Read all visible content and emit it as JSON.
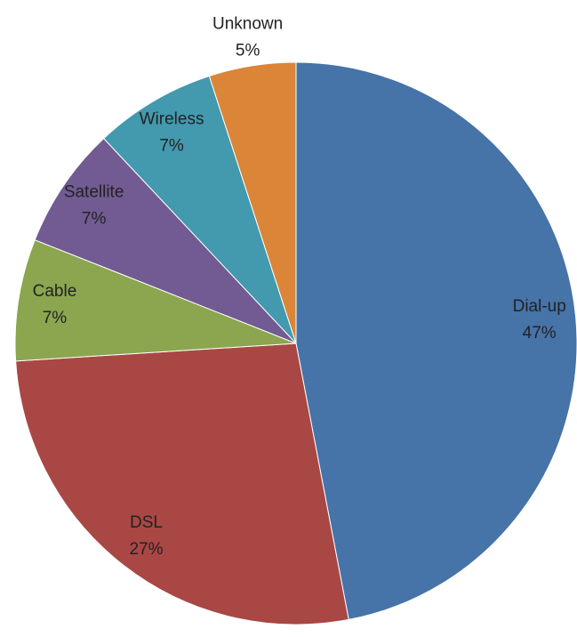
{
  "chart_data": {
    "type": "pie",
    "categories": [
      "Dial-up",
      "DSL",
      "Cable",
      "Satellite",
      "Wireless",
      "Unknown"
    ],
    "values": [
      47,
      27,
      7,
      7,
      7,
      5
    ],
    "value_labels": [
      "47%",
      "27%",
      "7%",
      "7%",
      "7%",
      "5%"
    ],
    "colors": [
      "#4673a8",
      "#a94744",
      "#8ba64f",
      "#725a92",
      "#4399ae",
      "#da8538"
    ]
  }
}
